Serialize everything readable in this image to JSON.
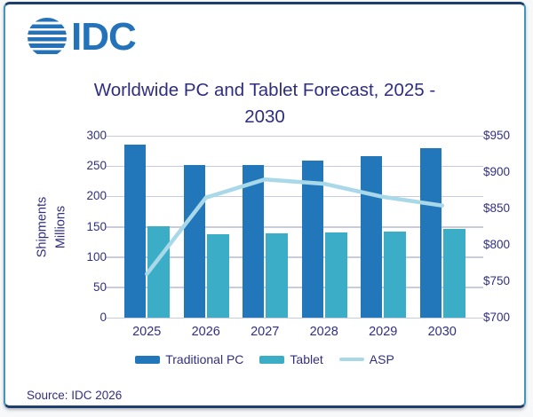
{
  "logo": {
    "text": "IDC"
  },
  "title": {
    "line1": "Worldwide PC and Tablet Forecast, 2025 -",
    "line2": "2030"
  },
  "chart_data": {
    "type": "bar",
    "categories": [
      "2025",
      "2026",
      "2027",
      "2028",
      "2029",
      "2030"
    ],
    "series": [
      {
        "name": "Traditional PC",
        "type": "bar",
        "axis": "left",
        "color": "#2277bb",
        "values": [
          285,
          252,
          251,
          259,
          267,
          280
        ]
      },
      {
        "name": "Tablet",
        "type": "bar",
        "axis": "left",
        "color": "#3badc7",
        "values": [
          151,
          138,
          139,
          141,
          142,
          147
        ]
      },
      {
        "name": "ASP",
        "type": "line",
        "axis": "right",
        "color": "#a9d9e8",
        "values": [
          760,
          865,
          890,
          884,
          866,
          854
        ]
      }
    ],
    "title": "Worldwide PC and Tablet Forecast, 2025 - 2030",
    "left_axis": {
      "label_line1": "Shipments",
      "label_line2": "Millions",
      "min": 0,
      "max": 300,
      "step": 50,
      "ticks": [
        "300",
        "250",
        "200",
        "150",
        "100",
        "50",
        "0"
      ]
    },
    "right_axis": {
      "min": 700,
      "max": 950,
      "step": 50,
      "ticks": [
        "$950",
        "$900",
        "$850",
        "$800",
        "$750",
        "$700"
      ]
    },
    "grid": true,
    "legend_position": "bottom"
  },
  "legend": {
    "items": [
      {
        "label": "Traditional PC",
        "color": "#2277bb",
        "shape": "rect"
      },
      {
        "label": "Tablet",
        "color": "#3badc7",
        "shape": "rect"
      },
      {
        "label": "ASP",
        "color": "#a9d9e8",
        "shape": "line"
      }
    ]
  },
  "source": {
    "text": "Source: IDC 2026"
  },
  "colors": {
    "text_indigo": "#31307f",
    "title_indigo": "#2e2d80",
    "logo_blue": "#2472b9",
    "gridline": "#c9cce0",
    "frame_navy": "#1e3f6d",
    "frame_teal": "#4296ba"
  }
}
